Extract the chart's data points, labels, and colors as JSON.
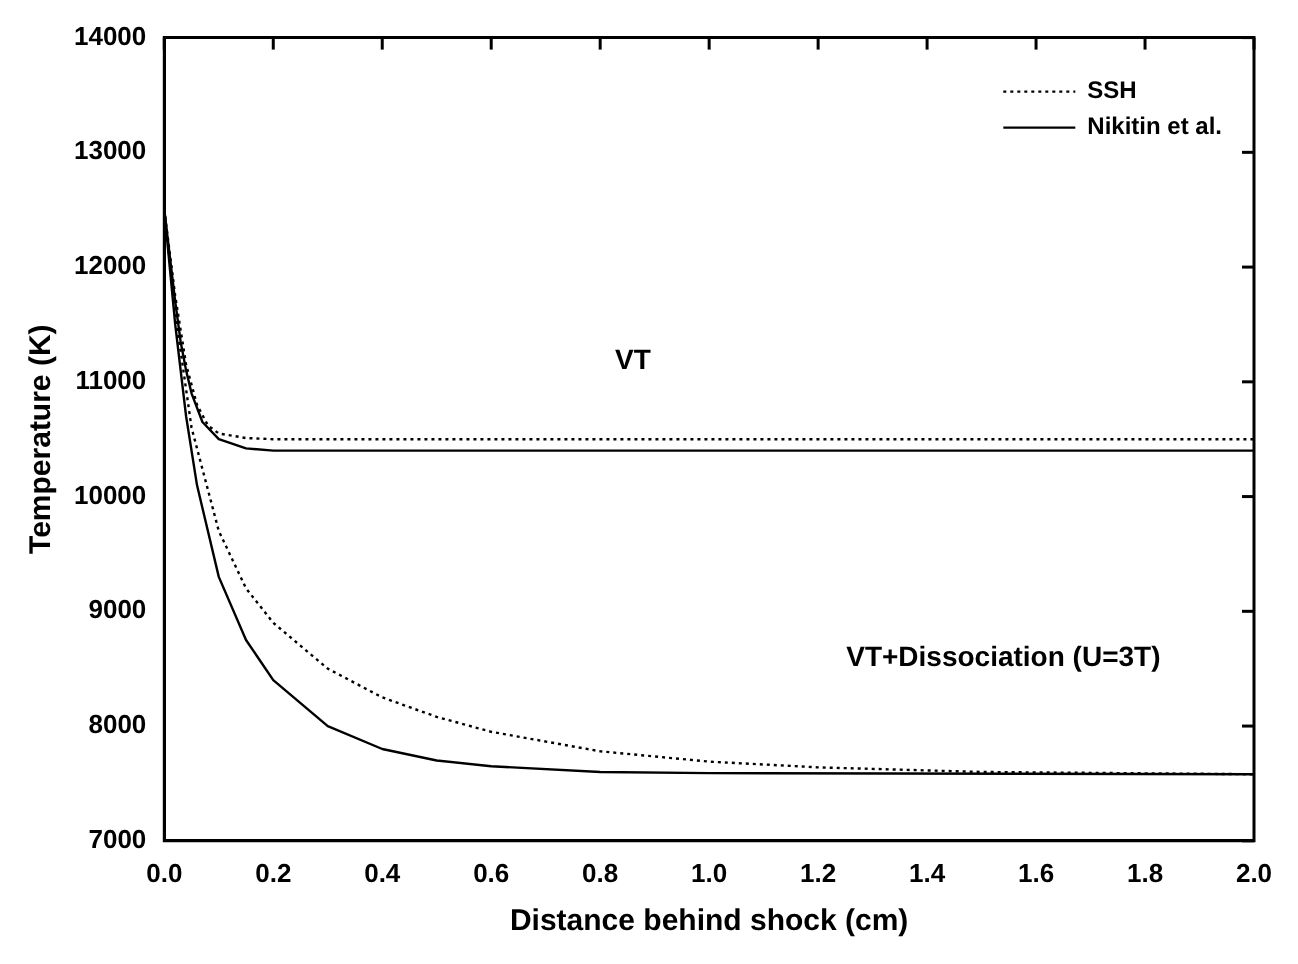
{
  "chart_data": {
    "type": "line",
    "xlabel": "Distance behind shock (cm)",
    "ylabel": "Temperature (K)",
    "xlim": [
      0,
      2
    ],
    "ylim": [
      7000,
      14000
    ],
    "xticks": [
      {
        "value": 0,
        "label": "0.0"
      },
      0.2,
      0.4,
      0.6,
      0.8,
      {
        "value": 1,
        "label": "1.0"
      },
      1.2,
      1.4,
      1.6,
      1.8,
      {
        "value": 2,
        "label": "2.0"
      }
    ],
    "yticks": [
      7000,
      8000,
      9000,
      10000,
      11000,
      12000,
      13000,
      14000
    ],
    "grid": false,
    "legend": "top right",
    "marker": "none",
    "series": [
      {
        "name": "SSH",
        "color": "#000000",
        "line_style": "dotted",
        "x": [
          0,
          0.02,
          0.04,
          0.06,
          0.08,
          0.1,
          0.15,
          0.2,
          2
        ],
        "values": [
          12500,
          11750,
          11150,
          10800,
          10620,
          10550,
          10510,
          10500,
          10500
        ]
      },
      {
        "name": "Nikitin et al.",
        "color": "#000000",
        "line_style": "solid",
        "x": [
          0,
          0.01,
          0.02,
          0.03,
          0.04,
          0.05,
          0.07,
          0.1,
          0.15,
          0.2,
          2
        ],
        "values": [
          12500,
          12100,
          11700,
          11350,
          11100,
          10900,
          10650,
          10500,
          10420,
          10400,
          10400
        ]
      },
      {
        "color": "#000000",
        "line_style": "dotted",
        "x": [
          0,
          0.02,
          0.05,
          0.1,
          0.15,
          0.2,
          0.3,
          0.4,
          0.5,
          0.6,
          0.8,
          1,
          1.2,
          1.5,
          2
        ],
        "values": [
          12500,
          11600,
          10600,
          9700,
          9200,
          8900,
          8500,
          8250,
          8080,
          7950,
          7780,
          7690,
          7640,
          7600,
          7580
        ]
      },
      {
        "color": "#000000",
        "line_style": "solid",
        "x": [
          0,
          0.02,
          0.04,
          0.06,
          0.1,
          0.15,
          0.2,
          0.3,
          0.4,
          0.5,
          0.6,
          0.8,
          1,
          2
        ],
        "values": [
          12500,
          11500,
          10700,
          10100,
          9300,
          8750,
          8400,
          8000,
          7800,
          7700,
          7650,
          7600,
          7590,
          7580
        ]
      }
    ],
    "annotations": [
      "VT",
      "VT+Dissociation (U=3T)"
    ]
  }
}
